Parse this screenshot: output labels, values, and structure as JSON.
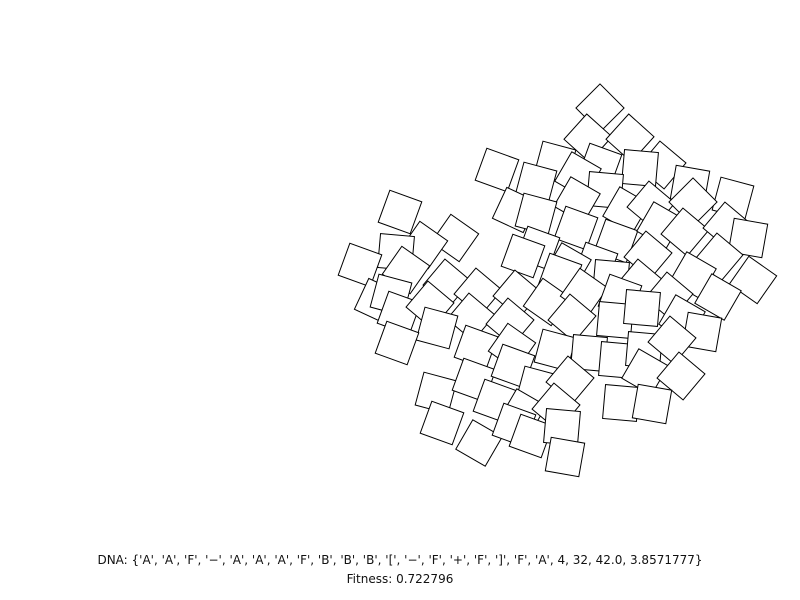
{
  "figure": {
    "square_stroke": "#000000",
    "square_fill": "#ffffff",
    "background": "#ffffff"
  },
  "caption": {
    "dna": "DNA: {'A', 'A', 'F', '−', 'A', 'A', 'A', 'F', 'B', 'B', 'B', '[', '−', 'F', '+', 'F', ']', 'F', 'A', 4, 32, 42.0, 3.8571777}",
    "fitness": "Fitness: 0.722796"
  }
}
